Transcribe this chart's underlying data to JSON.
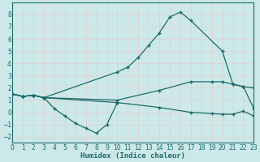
{
  "xlabel": "Humidex (Indice chaleur)",
  "xlim": [
    0,
    23
  ],
  "ylim": [
    -2.5,
    9.0
  ],
  "xticks": [
    0,
    1,
    2,
    3,
    4,
    5,
    6,
    7,
    8,
    9,
    10,
    11,
    12,
    13,
    14,
    15,
    16,
    17,
    18,
    19,
    20,
    21,
    22,
    23
  ],
  "yticks": [
    -2,
    -1,
    0,
    1,
    2,
    3,
    4,
    5,
    6,
    7,
    8
  ],
  "bg_color": "#cce8e8",
  "line_color": "#1b6b6b",
  "grid_color": "#b8d8d8",
  "line1_x": [
    0,
    1,
    2,
    3,
    10,
    11,
    12,
    13,
    14,
    15,
    16,
    17,
    20,
    21,
    22,
    23
  ],
  "line1_y": [
    1.5,
    1.3,
    1.4,
    1.2,
    3.3,
    3.7,
    4.5,
    5.5,
    6.5,
    7.8,
    8.2,
    7.5,
    5.0,
    2.3,
    2.1,
    0.3
  ],
  "line2_x": [
    0,
    1,
    2,
    3,
    4,
    5,
    6,
    7,
    8,
    9,
    10
  ],
  "line2_y": [
    1.5,
    1.3,
    1.4,
    1.2,
    0.3,
    -0.3,
    -0.9,
    -1.3,
    -1.7,
    -1.0,
    0.8
  ],
  "line3_x": [
    0,
    1,
    2,
    3,
    10,
    14,
    17,
    19,
    20,
    21,
    22,
    23
  ],
  "line3_y": [
    1.5,
    1.3,
    1.4,
    1.2,
    1.0,
    1.8,
    2.5,
    2.5,
    2.5,
    2.3,
    2.1,
    2.0
  ],
  "line4_x": [
    0,
    1,
    2,
    3,
    10,
    14,
    17,
    19,
    20,
    21,
    22,
    23
  ],
  "line4_y": [
    1.5,
    1.3,
    1.4,
    1.2,
    0.8,
    0.4,
    0.0,
    -0.1,
    -0.15,
    -0.15,
    0.1,
    -0.3
  ]
}
